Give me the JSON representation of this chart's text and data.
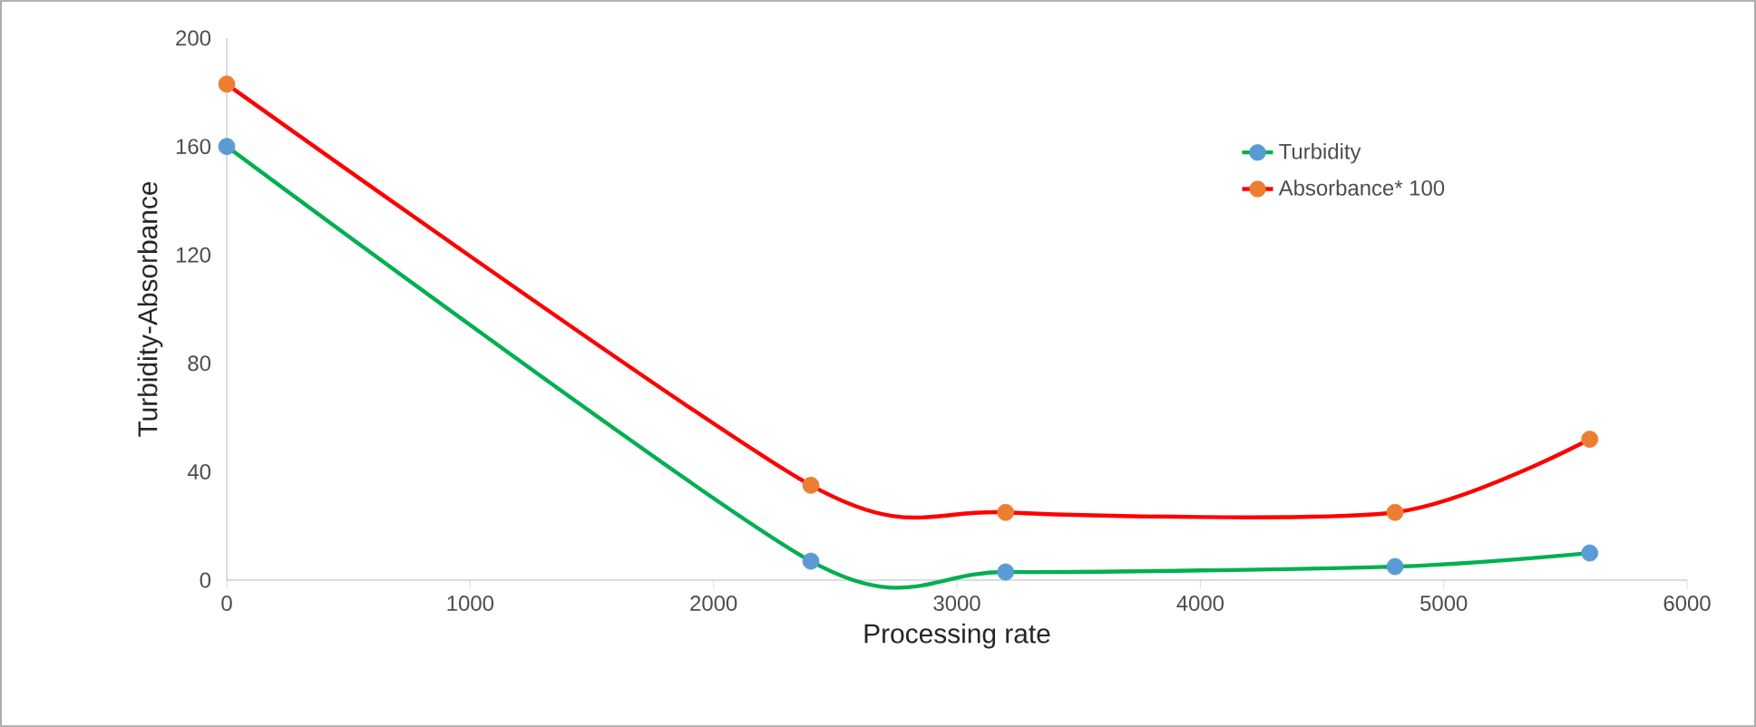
{
  "chart_data": {
    "type": "line",
    "xlabel": "Processing rate",
    "ylabel": "Turbidity-Absorbance",
    "x": [
      0,
      2400,
      3200,
      4800,
      5600
    ],
    "series": [
      {
        "name": "Turbidity",
        "color": "#00b050",
        "colors": [
          "#5b9bd5",
          "#5b9bd5",
          "#5b9bd5",
          "#5b9bd5",
          "#5b9bd5"
        ],
        "values": [
          160,
          7,
          3,
          5,
          10
        ]
      },
      {
        "name": "Absorbance* 100",
        "color": "#ff0000",
        "colors": [
          "#ed7d31",
          "#ed7d31",
          "#ed7d31",
          "#ed7d31",
          "#ed7d31"
        ],
        "values": [
          183,
          35,
          25,
          25,
          52
        ]
      }
    ],
    "xlim": [
      0,
      6000
    ],
    "xticks": [
      0,
      1000,
      2000,
      3000,
      4000,
      5000,
      6000
    ],
    "ylim": [
      0,
      200
    ],
    "yticks": [
      0,
      40,
      80,
      120,
      160,
      200
    ],
    "marker": "circle",
    "line_style": "solid",
    "grid": false,
    "legend": "top right"
  }
}
